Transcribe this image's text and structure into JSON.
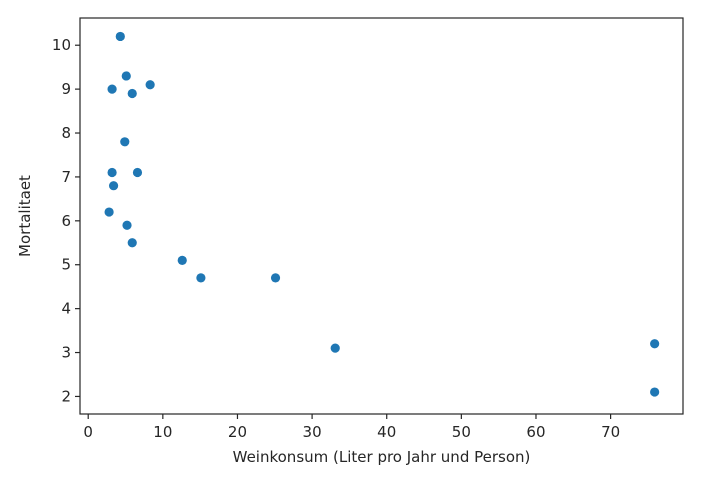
{
  "chart_data": {
    "type": "scatter",
    "title": "",
    "xlabel": "Weinkonsum (Liter pro Jahr und Person)",
    "ylabel": "Mortalitaet",
    "xlim": [
      -1.1,
      79.7
    ],
    "ylim": [
      1.6,
      10.62
    ],
    "xticks": [
      0,
      10,
      20,
      30,
      40,
      50,
      60,
      70
    ],
    "yticks": [
      2,
      3,
      4,
      5,
      6,
      7,
      8,
      9,
      10
    ],
    "grid": false,
    "marker_color": "#1f77b4",
    "points": [
      {
        "x": 2.8,
        "y": 6.2
      },
      {
        "x": 3.2,
        "y": 9.0
      },
      {
        "x": 3.2,
        "y": 7.1
      },
      {
        "x": 3.4,
        "y": 6.8
      },
      {
        "x": 4.3,
        "y": 10.2
      },
      {
        "x": 4.9,
        "y": 7.8
      },
      {
        "x": 5.1,
        "y": 9.3
      },
      {
        "x": 5.2,
        "y": 5.9
      },
      {
        "x": 5.9,
        "y": 8.9
      },
      {
        "x": 5.9,
        "y": 5.5
      },
      {
        "x": 6.6,
        "y": 7.1
      },
      {
        "x": 8.3,
        "y": 9.1
      },
      {
        "x": 12.6,
        "y": 5.1
      },
      {
        "x": 15.1,
        "y": 4.7
      },
      {
        "x": 25.1,
        "y": 4.7
      },
      {
        "x": 33.1,
        "y": 3.1
      },
      {
        "x": 75.9,
        "y": 3.2
      },
      {
        "x": 75.9,
        "y": 2.1
      }
    ]
  }
}
